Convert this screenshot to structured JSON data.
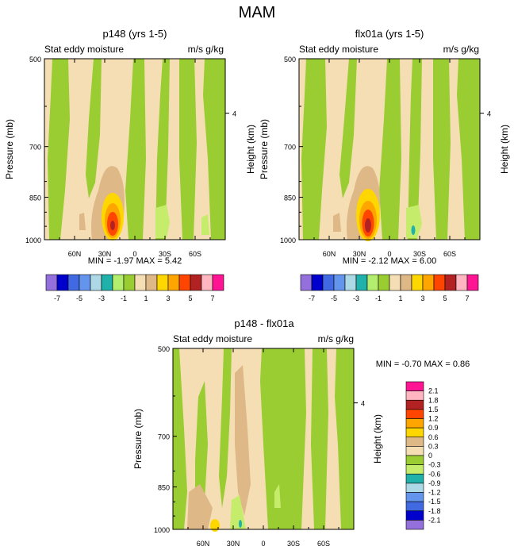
{
  "page_title": "MAM",
  "colors": {
    "tan_light": "#f5deb3",
    "tan_mid": "#deb887",
    "green": "#9acd32",
    "green_light": "#c5ec6a",
    "yellow": "#ffd700",
    "orange": "#ffa500",
    "orange_red": "#ff4500",
    "red": "#b22222",
    "teal": "#20b2aa",
    "light_blue": "#add8e6"
  },
  "chart_data": [
    {
      "type": "contour",
      "title": "p148 (yrs 1-5)",
      "left_label": "Stat eddy moisture",
      "right_label": "m/s g/kg",
      "ylabel": "Pressure (mb)",
      "y2label": "Height (km)",
      "y_ticks": [
        "500",
        "700",
        "850",
        "1000"
      ],
      "y2_ticks": [
        "4"
      ],
      "x_ticks": [
        "60N",
        "30N",
        "0",
        "30S",
        "60S"
      ],
      "stats": "MIN =  -1.97   MAX =   5.42",
      "ylim": [
        1000,
        500
      ],
      "xlim": [
        "90N",
        "90S"
      ]
    },
    {
      "type": "contour",
      "title": "flx01a (yrs 1-5)",
      "left_label": "Stat eddy moisture",
      "right_label": "m/s g/kg",
      "ylabel": "Pressure (mb)",
      "y2label": "Height (km)",
      "y_ticks": [
        "500",
        "700",
        "850",
        "1000"
      ],
      "y2_ticks": [
        "4"
      ],
      "x_ticks": [
        "60N",
        "30N",
        "0",
        "30S",
        "60S"
      ],
      "stats": "MIN =  -2.12   MAX =   6.00",
      "ylim": [
        1000,
        500
      ],
      "xlim": [
        "90N",
        "90S"
      ]
    },
    {
      "type": "contour",
      "title": "p148 - flx01a",
      "left_label": "Stat eddy moisture",
      "right_label": "m/s g/kg",
      "ylabel": "Pressure (mb)",
      "y2label": "Height (km)",
      "y_ticks": [
        "500",
        "700",
        "850",
        "1000"
      ],
      "y2_ticks": [
        "4"
      ],
      "x_ticks": [
        "60N",
        "30N",
        "0",
        "30S",
        "60S"
      ],
      "stats": "MIN =  -0.70   MAX =   0.86",
      "ylim": [
        1000,
        500
      ],
      "xlim": [
        "90N",
        "90S"
      ]
    }
  ],
  "colorbar_top": {
    "colors": [
      "#9370db",
      "#0000cd",
      "#4169e1",
      "#6495ed",
      "#add8e6",
      "#20b2aa",
      "#b4ee6e",
      "#9acd32",
      "#f5deb3",
      "#deb887",
      "#ffd700",
      "#ffa500",
      "#ff4500",
      "#b22222",
      "#ffb6c1",
      "#ff1493"
    ],
    "labels": [
      "-7",
      "-5",
      "-3",
      "-1",
      "1",
      "3",
      "5",
      "7"
    ]
  },
  "colorbar_diff": {
    "colors": [
      "#ff1493",
      "#ffb6c1",
      "#b22222",
      "#ff4500",
      "#ffa500",
      "#ffd700",
      "#deb887",
      "#f5deb3",
      "#9acd32",
      "#c5ec6a",
      "#20b2aa",
      "#add8e6",
      "#6495ed",
      "#4169e1",
      "#0000cd",
      "#9370db"
    ],
    "labels": [
      "2.1",
      "1.8",
      "1.5",
      "1.2",
      "0.9",
      "0.6",
      "0.3",
      "0",
      "-0.3",
      "-0.6",
      "-0.9",
      "-1.2",
      "-1.5",
      "-1.8",
      "-2.1"
    ]
  }
}
